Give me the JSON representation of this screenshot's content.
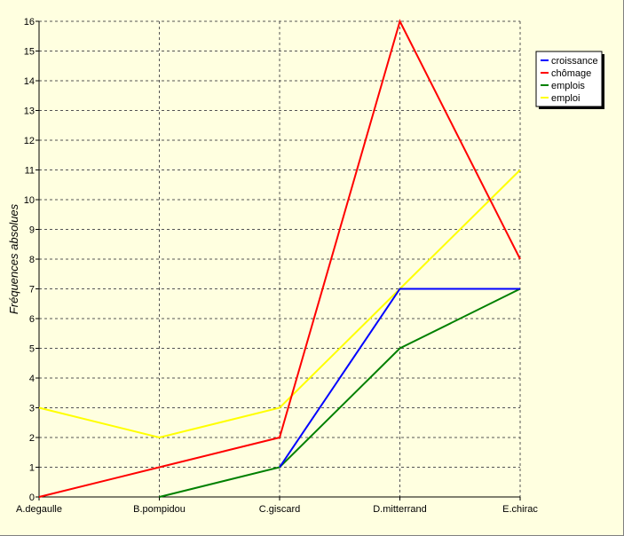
{
  "chart_data": {
    "type": "line",
    "title": "",
    "xlabel": "",
    "ylabel": "Fréquences absolues",
    "categories": [
      "A.degaulle",
      "B.pompidou",
      "C.giscard",
      "D.mitterrand",
      "E.chirac"
    ],
    "ylim": [
      0,
      16
    ],
    "yticks": [
      0,
      1,
      2,
      3,
      4,
      5,
      6,
      7,
      8,
      9,
      10,
      11,
      12,
      13,
      14,
      15,
      16
    ],
    "grid": true,
    "legend_position": "top-right",
    "series": [
      {
        "name": "croissance",
        "color": "#0000FF",
        "values": [
          null,
          null,
          1,
          7,
          7
        ]
      },
      {
        "name": "chômage",
        "color": "#FF0000",
        "values": [
          0,
          1,
          2,
          16,
          8
        ]
      },
      {
        "name": "emplois",
        "color": "#008000",
        "values": [
          null,
          0,
          1,
          5,
          7
        ]
      },
      {
        "name": "emploi",
        "color": "#FFFF00",
        "values": [
          3,
          2,
          3,
          7,
          11
        ]
      }
    ]
  }
}
